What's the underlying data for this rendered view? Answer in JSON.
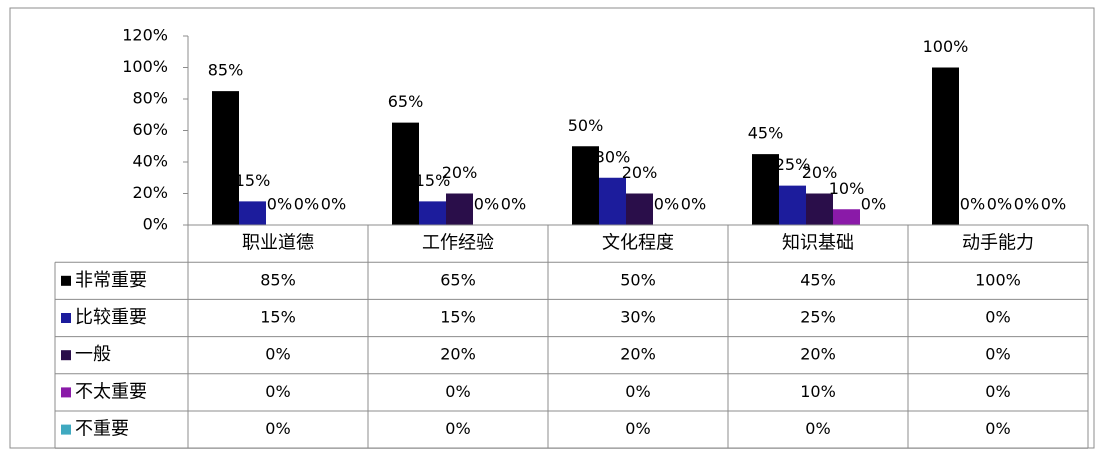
{
  "chart_data": {
    "type": "bar",
    "categories": [
      "职业道德",
      "工作经验",
      "文化程度",
      "知识基础",
      "动手能力"
    ],
    "series": [
      {
        "name": "非常重要",
        "color": "#000000",
        "values": [
          85,
          65,
          50,
          45,
          100
        ],
        "value_labels": [
          "85%",
          "65%",
          "50%",
          "45%",
          "100%"
        ]
      },
      {
        "name": "比较重要",
        "color": "#1c1c9c",
        "values": [
          15,
          15,
          30,
          25,
          0
        ],
        "value_labels": [
          "15%",
          "15%",
          "30%",
          "25%",
          "0%"
        ]
      },
      {
        "name": "一般",
        "color": "#2a0e4a",
        "values": [
          0,
          20,
          20,
          20,
          0
        ],
        "value_labels": [
          "0%",
          "20%",
          "20%",
          "20%",
          "0%"
        ]
      },
      {
        "name": "不太重要",
        "color": "#8a1aa8",
        "values": [
          0,
          0,
          0,
          10,
          0
        ],
        "value_labels": [
          "0%",
          "0%",
          "0%",
          "10%",
          "0%"
        ]
      },
      {
        "name": "不重要",
        "color": "#3fa9c0",
        "values": [
          0,
          0,
          0,
          0,
          0
        ],
        "value_labels": [
          "0%",
          "0%",
          "0%",
          "0%",
          "0%"
        ]
      }
    ],
    "ylim": [
      0,
      120
    ],
    "yticks": [
      {
        "value": 0,
        "label": "0%"
      },
      {
        "value": 20,
        "label": "20%"
      },
      {
        "value": 40,
        "label": "40%"
      },
      {
        "value": 60,
        "label": "60%"
      },
      {
        "value": 80,
        "label": "80%"
      },
      {
        "value": 100,
        "label": "100%"
      },
      {
        "value": 120,
        "label": "120%"
      }
    ],
    "data_table": true
  }
}
